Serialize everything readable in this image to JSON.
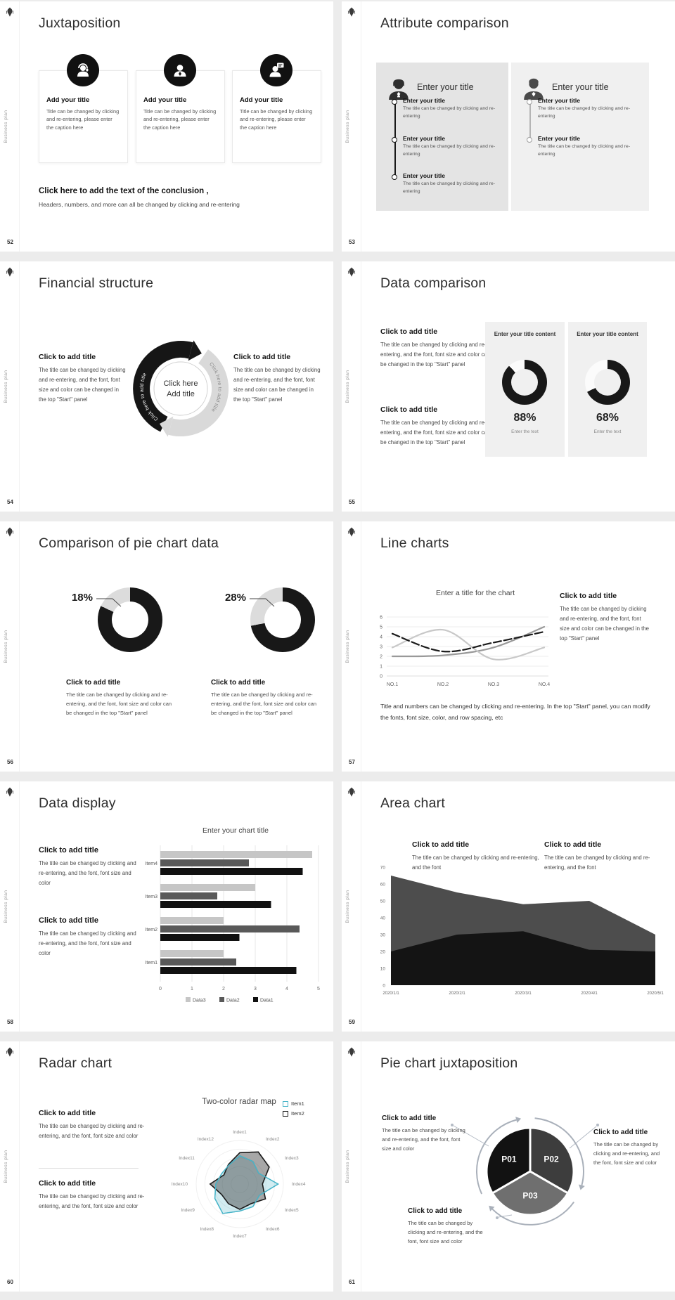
{
  "page": {
    "background": "#ececec"
  },
  "brand": {
    "sidebar_label": "Business plan",
    "logo": "emblem-icon"
  },
  "slides": {
    "s52": {
      "number": "52",
      "title": "Juxtaposition",
      "cards": [
        {
          "icon": "support-agent-icon",
          "title": "Add your title",
          "caption": "Title can be changed by clicking and re-entering, please enter the caption here"
        },
        {
          "icon": "person-icon",
          "title": "Add your title",
          "caption": "Title can be changed by clicking and re-entering, please enter the caption here"
        },
        {
          "icon": "person-chat-icon",
          "title": "Add your title",
          "caption": "Title can be changed by clicking and re-entering, please enter the caption here"
        }
      ],
      "conclusion_title": "Click here to add the text of the conclusion ,",
      "conclusion_body": "Headers, numbers, and more can all be changed by clicking and re-entering"
    },
    "s53": {
      "number": "53",
      "title": "Attribute comparison",
      "left_panel": {
        "icon": "businesswoman-icon",
        "heading": "Enter your title",
        "items": [
          {
            "title": "Enter your title",
            "caption": "The title can be changed by clicking and re-entering"
          },
          {
            "title": "Enter your title",
            "caption": "The title can be changed by clicking and re-entering"
          },
          {
            "title": "Enter your title",
            "caption": "The title can be changed by clicking and re-entering"
          }
        ]
      },
      "right_panel": {
        "icon": "businessman-icon",
        "heading": "Enter your title",
        "items": [
          {
            "title": "Enter your title",
            "caption": "The title can be changed by clicking and re-entering"
          },
          {
            "title": "Enter your title",
            "caption": "The title can be changed by clicking and re-entering"
          }
        ]
      }
    },
    "s54": {
      "number": "54",
      "title": "Financial structure",
      "left_block": {
        "heading": "Click to add title",
        "body": "The title can be changed by clicking and re-entering, and the font, font size and color can be changed in the top \"Start\" panel"
      },
      "right_block": {
        "heading": "Click to add title",
        "body": "The title can be changed by clicking and re-entering, and the font, font size and color can be changed in the top \"Start\" panel"
      },
      "diagram": {
        "arc_label_black": "Click here to add title",
        "arc_label_gray": "Click here to add title",
        "center_line1": "Click here",
        "center_line2": "Add title"
      }
    },
    "s55": {
      "number": "55",
      "title": "Data comparison",
      "blocks": [
        {
          "heading": "Click to add title",
          "body": "The title can be changed by clicking and re-entering, and the font, font size and color can be changed in the top \"Start\" panel"
        },
        {
          "heading": "Click to add title",
          "body": "The title can be changed by clicking and re-entering, and the font, font size and color can be changed in the top \"Start\" panel"
        }
      ]
    },
    "s56": {
      "number": "56",
      "title": "Comparison of pie chart data",
      "blocks": [
        {
          "heading": "Click to add title",
          "body": "The title can be changed by clicking and re-entering, and the font, font size and color can be changed in the top \"Start\" panel"
        },
        {
          "heading": "Click to add title",
          "body": "The title can be changed by clicking and re-entering, and the font, font size and color can be changed in the top \"Start\" panel"
        }
      ]
    },
    "s57": {
      "number": "57",
      "title": "Line charts",
      "right_block": {
        "heading": "Click to add title",
        "body": "The title can be changed by clicking and re-entering, and the font, font size and color can be changed in the top \"Start\" panel"
      },
      "footer": "Title and numbers can be changed by clicking and re-entering. In the top \"Start\" panel, you can modify the fonts, font size, color, and row spacing, etc"
    },
    "s58": {
      "number": "58",
      "title": "Data display",
      "blocks": [
        {
          "heading": "Click to add title",
          "body": "The title can be changed by clicking and re-entering, and the font, font size and color"
        },
        {
          "heading": "Click to add title",
          "body": "The title can be changed by clicking and re-entering, and the font, font size and color"
        }
      ]
    },
    "s59": {
      "number": "59",
      "title": "Area chart",
      "blocks": [
        {
          "heading": "Click to add title",
          "body": "The title can be changed by clicking and re-entering, and the font"
        },
        {
          "heading": "Click to add title",
          "body": "The title can be changed by clicking and re-entering, and the font"
        }
      ]
    },
    "s60": {
      "number": "60",
      "title": "Radar chart",
      "blocks": [
        {
          "heading": "Click to add title",
          "body": "The title can be changed by clicking and re-entering, and the font, font size and color"
        },
        {
          "heading": "Click to add title",
          "body": "The title can be changed by clicking and re-entering, and the font, font size and color"
        }
      ]
    },
    "s61": {
      "number": "61",
      "title": "Pie chart juxtaposition",
      "blocks": [
        {
          "heading": "Click to add title",
          "body": "The title can be changed by clicking and re-entering, and the font, font size and color"
        },
        {
          "heading": "Click to add title",
          "body": "The title can be changed by clicking and re-entering, and the font, font size and color"
        },
        {
          "heading": "Click to add title",
          "body": "The title can be changed by clicking and re-entering, and the font, font size and color"
        }
      ]
    }
  },
  "chart_data": [
    {
      "slide": 55,
      "type": "donut",
      "series": [
        {
          "label": "Enter your title content",
          "value": 88,
          "display": "88%",
          "caption": "Enter the text"
        },
        {
          "label": "Enter your title content",
          "value": 68,
          "display": "68%",
          "caption": "Enter the text"
        }
      ],
      "colors": {
        "filled": "#181818",
        "rest": "#fbfbfb"
      }
    },
    {
      "slide": 56,
      "type": "donut",
      "series": [
        {
          "display": "18%",
          "gray_share": 18,
          "black_share": 82
        },
        {
          "display": "28%",
          "gray_share": 28,
          "black_share": 72
        }
      ],
      "colors": {
        "black": "#181818",
        "gray": "#dcdcdc"
      }
    },
    {
      "slide": 57,
      "type": "line",
      "title": "Enter a title for the chart",
      "x": [
        "NO.1",
        "NO.2",
        "NO.3",
        "NO.4"
      ],
      "ylim": [
        0,
        6
      ],
      "yticks": [
        0,
        1,
        2,
        3,
        4,
        5,
        6
      ],
      "grid": true,
      "series": [
        {
          "name": "series-black",
          "color": "#1a1a1a",
          "dash": true,
          "values": [
            4.3,
            2.5,
            3.4,
            4.5
          ]
        },
        {
          "name": "series-light-gray",
          "color": "#c8c8c8",
          "dash": false,
          "values": [
            2.9,
            4.7,
            1.7,
            2.9
          ]
        },
        {
          "name": "series-mid-gray",
          "color": "#999999",
          "dash": false,
          "values": [
            2.0,
            2.1,
            2.9,
            5.0
          ]
        }
      ]
    },
    {
      "slide": 58,
      "type": "bar",
      "title": "Enter your chart title",
      "categories": [
        "Item1",
        "Item2",
        "Item3",
        "Item4"
      ],
      "xlim": [
        0,
        5
      ],
      "xticks": [
        0,
        1,
        2,
        3,
        4,
        5
      ],
      "grid": true,
      "series": [
        {
          "name": "Data1",
          "color": "#111111",
          "values": [
            4.3,
            2.5,
            3.5,
            4.5
          ]
        },
        {
          "name": "Data2",
          "color": "#595959",
          "values": [
            2.4,
            4.4,
            1.8,
            2.8
          ]
        },
        {
          "name": "Data3",
          "color": "#c6c6c6",
          "values": [
            2.0,
            2.0,
            3.0,
            4.8
          ]
        }
      ],
      "legend_order": [
        "Data3",
        "Data2",
        "Data1"
      ],
      "legend_position": "bottom"
    },
    {
      "slide": 59,
      "type": "area",
      "x": [
        "2020/1/1",
        "2020/2/1",
        "2020/3/1",
        "2020/4/1",
        "2020/5/1"
      ],
      "ylim": [
        0,
        70
      ],
      "yticks": [
        0,
        10,
        20,
        30,
        40,
        50,
        60,
        70
      ],
      "grid": false,
      "series": [
        {
          "name": "series-gray",
          "color": "#4d4d4d",
          "values": [
            65,
            55,
            48,
            50,
            30
          ]
        },
        {
          "name": "series-black",
          "color": "#141414",
          "values": [
            20,
            30,
            32,
            21,
            20
          ]
        }
      ]
    },
    {
      "slide": 60,
      "type": "radar",
      "title": "Two-color radar map",
      "categories": [
        "Index1",
        "Index2",
        "Index3",
        "Index4",
        "Index5",
        "Index6",
        "Index7",
        "Index8",
        "Index9",
        "Index10",
        "Index11",
        "Index12"
      ],
      "rmax": 1,
      "series": [
        {
          "name": "Item1",
          "color": "#4ab5c9",
          "values": [
            0.65,
            0.6,
            0.5,
            0.88,
            0.52,
            0.6,
            0.62,
            0.78,
            0.66,
            0.55,
            0.48,
            0.5
          ]
        },
        {
          "name": "Item2",
          "color": "#1a1a1a",
          "values": [
            0.72,
            0.85,
            0.78,
            0.52,
            0.68,
            0.52,
            0.58,
            0.52,
            0.48,
            0.68,
            0.42,
            0.52
          ]
        }
      ],
      "legend_position": "top-right"
    },
    {
      "slide": 61,
      "type": "pie",
      "slices": [
        {
          "label": "P01",
          "color": "#121212",
          "value": 33.3
        },
        {
          "label": "P02",
          "color": "#3d3d3d",
          "value": 33.3
        },
        {
          "label": "P03",
          "color": "#6f6f6f",
          "value": 33.4
        }
      ]
    }
  ]
}
